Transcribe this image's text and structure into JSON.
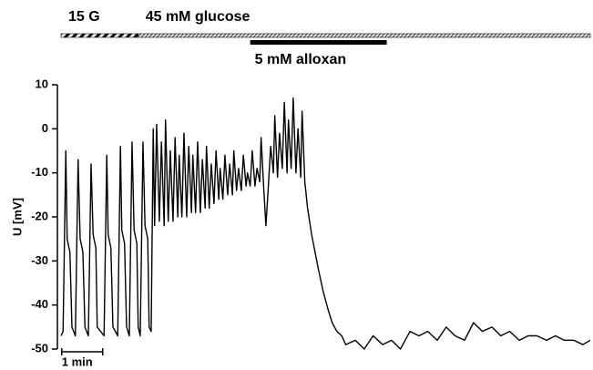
{
  "chart_data": {
    "type": "line",
    "ylabel": "U [mV]",
    "color": "#000000",
    "ylim": [
      -50,
      10
    ],
    "yticks": [
      10,
      0,
      -10,
      -20,
      -30,
      -40,
      -50
    ],
    "xlim": [
      0,
      775
    ],
    "annotations": [
      {
        "label": "15 G",
        "start": 0,
        "end": 113,
        "style": "coarse-hatch"
      },
      {
        "label": "45 mM glucose",
        "start": 113,
        "end": 775,
        "style": "fine-hatch"
      },
      {
        "label": "5 mM alloxan",
        "start": 277,
        "end": 477,
        "style": "solid"
      }
    ],
    "scale_bar": {
      "label": "1 min",
      "start": 1,
      "length": 60
    },
    "x": [
      0,
      3,
      7,
      9,
      13,
      16,
      21,
      25,
      28,
      32,
      35,
      40,
      44,
      47,
      51,
      53,
      63,
      67,
      69,
      73,
      76,
      83,
      87,
      89,
      93,
      96,
      100,
      104,
      107,
      111,
      113,
      116,
      120,
      123,
      127,
      129,
      132,
      135,
      137,
      140,
      144,
      147,
      151,
      153,
      157,
      160,
      164,
      167,
      171,
      173,
      177,
      180,
      184,
      187,
      191,
      193,
      197,
      200,
      204,
      207,
      211,
      213,
      217,
      220,
      224,
      227,
      231,
      233,
      237,
      240,
      244,
      247,
      251,
      253,
      257,
      260,
      264,
      267,
      271,
      273,
      277,
      280,
      284,
      287,
      291,
      293,
      297,
      300,
      304,
      307,
      311,
      313,
      317,
      320,
      324,
      327,
      331,
      333,
      337,
      340,
      344,
      347,
      351,
      353,
      357,
      361,
      367,
      372,
      377,
      384,
      391,
      397,
      404,
      411,
      417,
      431,
      444,
      457,
      471,
      484,
      497,
      511,
      524,
      537,
      551,
      564,
      577,
      591,
      604,
      617,
      631,
      644,
      657,
      671,
      684,
      697,
      711,
      724,
      737,
      751,
      764,
      775
    ],
    "values": [
      -47,
      -46,
      -5,
      -25,
      -28,
      -45,
      -47,
      -7,
      -25,
      -28,
      -45,
      -47,
      -8,
      -24,
      -27,
      -45,
      -47,
      -6,
      -24,
      -27,
      -45,
      -47,
      -4,
      -23,
      -26,
      -45,
      -47,
      -3,
      -23,
      -26,
      -45,
      -47,
      -3,
      -22,
      -25,
      -45,
      -46,
      0,
      -22,
      1,
      -21,
      -3,
      -22,
      2,
      -21,
      -5,
      -21,
      -2,
      -20,
      -6,
      -20,
      -1,
      -20,
      -4,
      -19,
      -6,
      -19,
      -3,
      -19,
      -7,
      -18,
      -4,
      -18,
      -8,
      -17,
      -5,
      -16,
      -9,
      -16,
      -6,
      -15,
      -8,
      -15,
      -5,
      -14,
      -9,
      -14,
      -6,
      -13,
      -10,
      -13,
      -5,
      -13,
      -9,
      -12,
      -2,
      -14,
      -22,
      -12,
      -4,
      -10,
      3,
      -11,
      -1,
      -9,
      6,
      -10,
      2,
      -9,
      7,
      -10,
      0,
      -11,
      4,
      -12,
      -18,
      -24,
      -28,
      -32,
      -37,
      -41,
      -44,
      -46,
      -47,
      -49,
      -48,
      -50,
      -47,
      -49,
      -48,
      -50,
      -46,
      -47,
      -46,
      -48,
      -45,
      -47,
      -48,
      -44,
      -46,
      -45,
      -47,
      -46,
      -48,
      -47,
      -47,
      -48,
      -47,
      -48,
      -48,
      -49,
      -48
    ]
  }
}
